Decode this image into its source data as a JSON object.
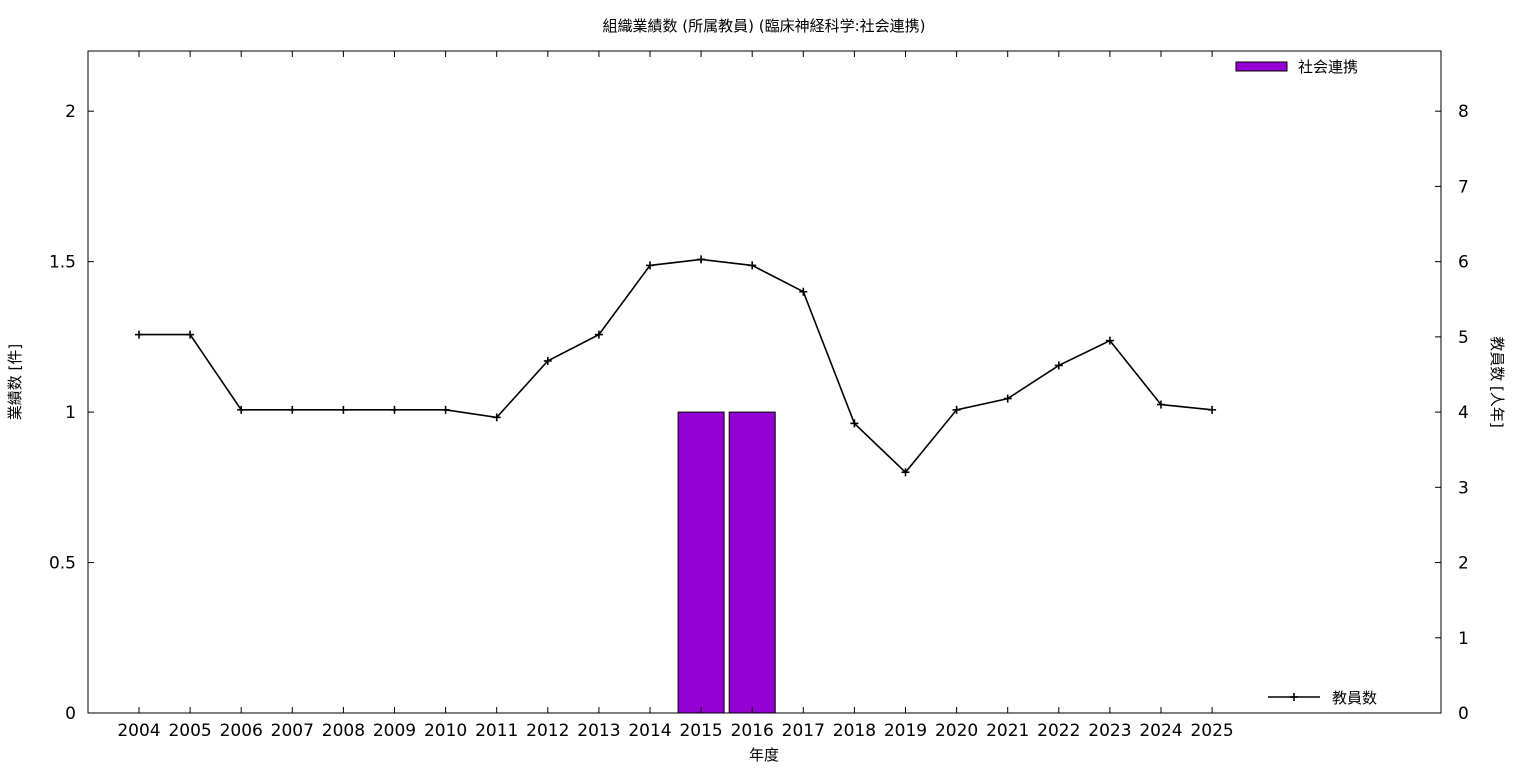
{
  "chart_data": {
    "type": "bar",
    "title": "組織業績数 (所属教員) (臨床神経科学:社会連携)",
    "xlabel": "年度",
    "ylabel_left": "業績数 [件]",
    "ylabel_right": "教員数 [人年]",
    "categories": [
      "2004",
      "2005",
      "2006",
      "2007",
      "2008",
      "2009",
      "2010",
      "2011",
      "2012",
      "2013",
      "2014",
      "2015",
      "2016",
      "2017",
      "2018",
      "2019",
      "2020",
      "2021",
      "2022",
      "2023",
      "2024",
      "2025"
    ],
    "ylim_left": [
      0,
      2.2
    ],
    "yticks_left": [
      "0",
      "0.5",
      "1",
      "1.5",
      "2"
    ],
    "ylim_right": [
      0,
      8.8
    ],
    "yticks_right": [
      "0",
      "1",
      "2",
      "3",
      "4",
      "5",
      "6",
      "7",
      "8"
    ],
    "bar_series": {
      "name": "社会連携",
      "color": "#9400d3",
      "values": [
        0,
        0,
        0,
        0,
        0,
        0,
        0,
        0,
        0,
        0,
        0,
        1,
        1,
        0,
        0,
        0,
        0,
        0,
        0,
        0,
        0,
        0
      ]
    },
    "line_series": {
      "name": "教員数",
      "color": "#000000",
      "axis": "right",
      "values": [
        5.03,
        5.03,
        4.03,
        4.03,
        4.03,
        4.03,
        4.03,
        3.93,
        4.68,
        5.03,
        5.95,
        6.03,
        5.95,
        5.6,
        3.85,
        3.2,
        4.03,
        4.18,
        4.62,
        4.95,
        4.1,
        4.03
      ]
    },
    "legend": {
      "bar_position": "top-right",
      "line_position": "bottom-right"
    },
    "grid": false
  }
}
